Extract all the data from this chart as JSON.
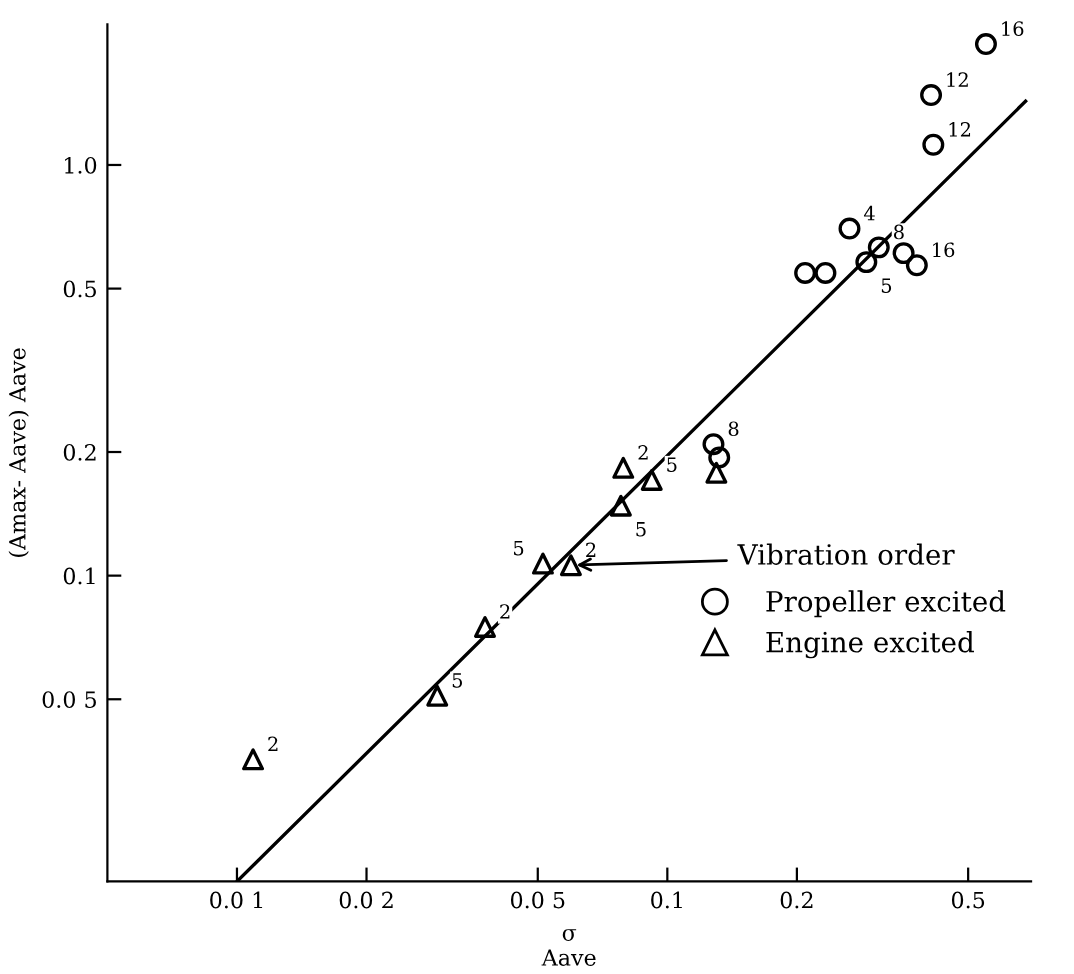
{
  "chart_data": {
    "type": "scatter",
    "xlabel": "σ\nAave",
    "ylabel": "(Amax- Aave) Aave",
    "xlim": [
      0.005,
      0.7
    ],
    "ylim": [
      0.018,
      2.2
    ],
    "xticks": [
      {
        "value": 0.01,
        "label": "0.0 1"
      },
      {
        "value": 0.02,
        "label": "0.0 2"
      },
      {
        "value": 0.05,
        "label": "0.0 5"
      },
      0.1,
      0.2,
      0.5
    ],
    "yticks": [
      {
        "value": 0.05,
        "label": "0.0 5"
      },
      0.1,
      0.2,
      0.5,
      {
        "value": 1.0,
        "label": "1.0"
      }
    ],
    "log": "xy",
    "grid": false,
    "legend": "right",
    "series": [
      {
        "name": "Propeller excited",
        "color": "#000000",
        "marker": "circle",
        "x": [
          0.55,
          0.41,
          0.415,
          0.265,
          0.209,
          0.233,
          0.29,
          0.31,
          0.354,
          0.38,
          0.128,
          0.132
        ],
        "values": [
          1.97,
          1.48,
          1.12,
          0.7,
          0.546,
          0.546,
          0.58,
          0.63,
          0.61,
          0.57,
          0.209,
          0.194
        ]
      },
      {
        "name": "Engine excited",
        "color": "#000000",
        "marker": "triangle",
        "x": [
          0.13,
          0.079,
          0.092,
          0.078,
          0.0514,
          0.0597,
          0.0377,
          0.0292,
          0.0109
        ],
        "values": [
          0.178,
          0.183,
          0.171,
          0.148,
          0.107,
          0.106,
          0.075,
          0.051,
          0.0357
        ]
      },
      {
        "type": "line",
        "color": "#000000",
        "marker": "none",
        "x": [
          0.01,
          0.68
        ],
        "values": [
          0.018,
          1.43
        ]
      }
    ],
    "annotations": [
      {
        "text": "16",
        "x": 0.55,
        "y": 1.97
      },
      {
        "text": "12",
        "x": 0.41,
        "y": 1.48
      },
      {
        "text": "12",
        "x": 0.415,
        "y": 1.12
      },
      {
        "text": "4",
        "x": 0.265,
        "y": 0.7
      },
      {
        "text": "8",
        "x": 0.31,
        "y": 0.63
      },
      {
        "text": "5",
        "x": 0.29,
        "y": 0.58
      },
      {
        "text": "16",
        "x": 0.38,
        "y": 0.57
      },
      {
        "text": "8",
        "x": 0.128,
        "y": 0.209
      },
      {
        "text": "2",
        "x": 0.079,
        "y": 0.183
      },
      {
        "text": "5",
        "x": 0.092,
        "y": 0.171
      },
      {
        "text": "5",
        "x": 0.078,
        "y": 0.148
      },
      {
        "text": "5",
        "x": 0.0514,
        "y": 0.107
      },
      {
        "text": "2",
        "x": 0.0597,
        "y": 0.106
      },
      {
        "text": "2",
        "x": 0.0377,
        "y": 0.075
      },
      {
        "text": "5",
        "x": 0.0292,
        "y": 0.051
      },
      {
        "text": "2",
        "x": 0.0109,
        "y": 0.0357
      },
      {
        "text": "Vibration order",
        "x": 0.0597,
        "y": 0.106
      }
    ]
  }
}
